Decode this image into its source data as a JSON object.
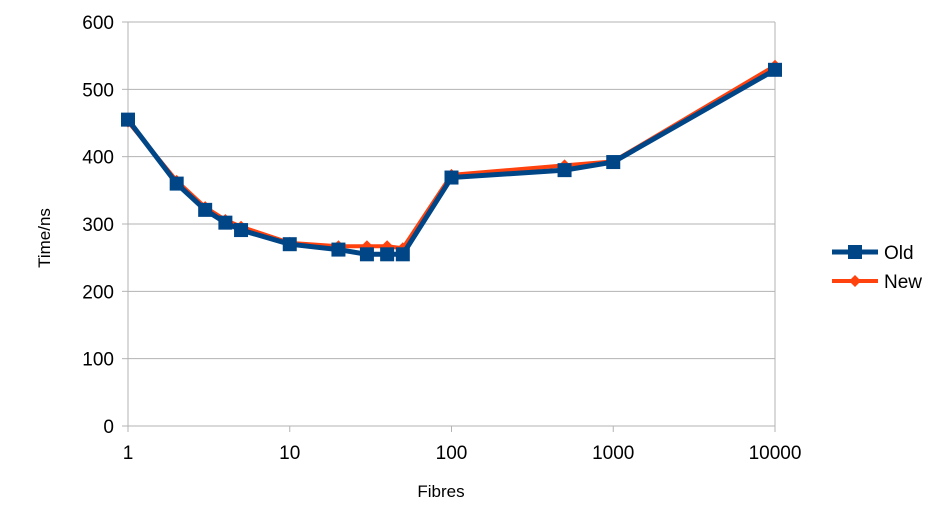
{
  "chart_data": {
    "type": "line",
    "title": "",
    "xlabel": "Fibres",
    "ylabel": "Time/ns",
    "xscale": "log",
    "xlim": [
      1,
      10000
    ],
    "ylim": [
      0,
      600
    ],
    "xticks": [
      1,
      10,
      100,
      1000,
      10000
    ],
    "xtick_labels": [
      "1",
      "10",
      "100",
      "1000",
      "10000"
    ],
    "yticks": [
      0,
      100,
      200,
      300,
      400,
      500,
      600
    ],
    "ytick_labels": [
      "0",
      "100",
      "200",
      "300",
      "400",
      "500",
      "600"
    ],
    "grid": "horizontal",
    "legend_position": "right",
    "series": [
      {
        "name": "Old",
        "color": "#004586",
        "marker": "square",
        "x": [
          1,
          2,
          3,
          4,
          5,
          10,
          20,
          30,
          40,
          50,
          100,
          500,
          1000,
          10000
        ],
        "y": [
          455,
          360,
          321,
          302,
          291,
          270,
          262,
          255,
          255,
          255,
          369,
          380,
          392,
          529
        ]
      },
      {
        "name": "New",
        "color": "#ff420e",
        "marker": "diamond",
        "x": [
          1,
          2,
          3,
          4,
          5,
          10,
          20,
          30,
          40,
          50,
          100,
          500,
          1000,
          10000
        ],
        "y": [
          452,
          364,
          325,
          306,
          296,
          272,
          267,
          267,
          267,
          264,
          373,
          387,
          393,
          535
        ]
      }
    ]
  }
}
